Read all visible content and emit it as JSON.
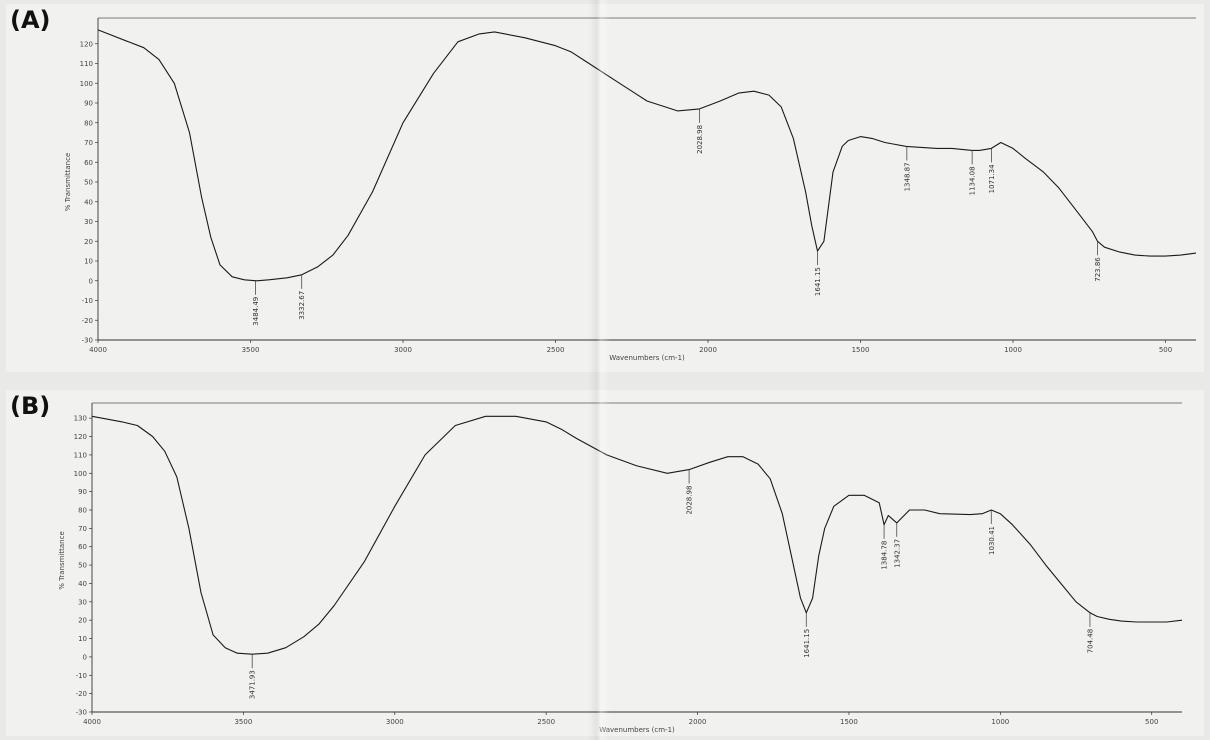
{
  "panels": [
    {
      "letter": "(A)"
    },
    {
      "letter": "(B)"
    }
  ],
  "chart_data": [
    {
      "type": "line",
      "title": "",
      "xlabel": "Wavenumbers (cm-1)",
      "ylabel": "% Transmittance",
      "xlim": [
        4000,
        400
      ],
      "ylim": [
        -30,
        130
      ],
      "x_ticks": [
        4000,
        3500,
        3000,
        2500,
        2000,
        1500,
        1000,
        500
      ],
      "y_ticks": [
        -30,
        -20,
        -10,
        0,
        10,
        20,
        30,
        40,
        50,
        60,
        70,
        80,
        90,
        100,
        110,
        120
      ],
      "series": [
        {
          "x": [
            4000,
            3900,
            3850,
            3800,
            3750,
            3700,
            3660,
            3630,
            3600,
            3560,
            3520,
            3480,
            3440,
            3380,
            3332,
            3280,
            3230,
            3180,
            3100,
            3000,
            2900,
            2820,
            2750,
            2700,
            2600,
            2500,
            2450,
            2400,
            2300,
            2200,
            2100,
            2028,
            1960,
            1900,
            1850,
            1800,
            1760,
            1720,
            1680,
            1660,
            1641,
            1620,
            1590,
            1560,
            1540,
            1500,
            1460,
            1420,
            1350,
            1300,
            1250,
            1200,
            1134,
            1110,
            1071,
            1040,
            1000,
            960,
            900,
            850,
            790,
            740,
            723,
            700,
            650,
            600,
            550,
            500,
            450,
            400
          ],
          "y": [
            127,
            121,
            118,
            112,
            100,
            75,
            42,
            22,
            8,
            2,
            0.5,
            0,
            0.5,
            1.5,
            3,
            7,
            13,
            23,
            45,
            80,
            105,
            121,
            125,
            126,
            123,
            119,
            116,
            111,
            101,
            91,
            86,
            87,
            91,
            95,
            96,
            94,
            88,
            72,
            45,
            28,
            15,
            20,
            55,
            68,
            71,
            73,
            72,
            70,
            68,
            67.5,
            67,
            67,
            66,
            66,
            67,
            70,
            67,
            62,
            55,
            47,
            35,
            25,
            20,
            17,
            14.5,
            13,
            12.5,
            12.5,
            13,
            14
          ]
        }
      ],
      "peak_labels": [
        {
          "x": 3484,
          "y": 0,
          "text": "3484.49"
        },
        {
          "x": 3332,
          "y": 3,
          "text": "3332.67"
        },
        {
          "x": 2028,
          "y": 87,
          "text": "2028.98"
        },
        {
          "x": 1641,
          "y": 15,
          "text": "1641.15"
        },
        {
          "x": 1348,
          "y": 68,
          "text": "1348.87"
        },
        {
          "x": 1134,
          "y": 66,
          "text": "1134.08"
        },
        {
          "x": 1071,
          "y": 67,
          "text": "1071.34"
        },
        {
          "x": 723,
          "y": 20,
          "text": "723.86"
        }
      ]
    },
    {
      "type": "line",
      "title": "",
      "xlabel": "Wavenumbers (cm-1)",
      "ylabel": "% Transmittance",
      "xlim": [
        4000,
        400
      ],
      "ylim": [
        -30,
        135
      ],
      "x_ticks": [
        4000,
        3500,
        3000,
        2500,
        2000,
        1500,
        1000,
        500
      ],
      "y_ticks": [
        -30,
        -20,
        -10,
        0,
        10,
        20,
        30,
        40,
        50,
        60,
        70,
        80,
        90,
        100,
        110,
        120,
        130
      ],
      "series": [
        {
          "x": [
            4000,
            3900,
            3850,
            3800,
            3760,
            3720,
            3680,
            3640,
            3600,
            3560,
            3520,
            3471,
            3420,
            3360,
            3300,
            3250,
            3200,
            3100,
            3000,
            2900,
            2800,
            2700,
            2600,
            2500,
            2450,
            2400,
            2300,
            2200,
            2100,
            2028,
            1960,
            1900,
            1850,
            1800,
            1760,
            1720,
            1690,
            1660,
            1641,
            1620,
            1600,
            1580,
            1550,
            1500,
            1450,
            1400,
            1384,
            1370,
            1342,
            1300,
            1250,
            1200,
            1100,
            1060,
            1030,
            1000,
            960,
            900,
            850,
            800,
            750,
            704,
            680,
            640,
            600,
            550,
            500,
            450,
            400
          ],
          "y": [
            131,
            128,
            126,
            120,
            112,
            98,
            70,
            35,
            12,
            5,
            2,
            1.5,
            2,
            5,
            11,
            18,
            28,
            52,
            82,
            110,
            126,
            131,
            131,
            128,
            124,
            119,
            110,
            104,
            100,
            102,
            106,
            109,
            109,
            105,
            97,
            78,
            55,
            32,
            24,
            32,
            55,
            70,
            82,
            88,
            88,
            84,
            72,
            77,
            73,
            80,
            80,
            78,
            77.5,
            78,
            80,
            78,
            72,
            61,
            50,
            40,
            30,
            24,
            22,
            20.5,
            19.5,
            19,
            19,
            19,
            20
          ]
        }
      ],
      "peak_labels": [
        {
          "x": 3471,
          "y": 1.5,
          "text": "3471.93"
        },
        {
          "x": 2028,
          "y": 102,
          "text": "2028.98"
        },
        {
          "x": 1641,
          "y": 24,
          "text": "1641.15"
        },
        {
          "x": 1384,
          "y": 72,
          "text": "1384.78"
        },
        {
          "x": 1342,
          "y": 73,
          "text": "1342.37"
        },
        {
          "x": 1030,
          "y": 80,
          "text": "1030.41"
        },
        {
          "x": 704,
          "y": 24,
          "text": "704.48"
        }
      ]
    }
  ]
}
